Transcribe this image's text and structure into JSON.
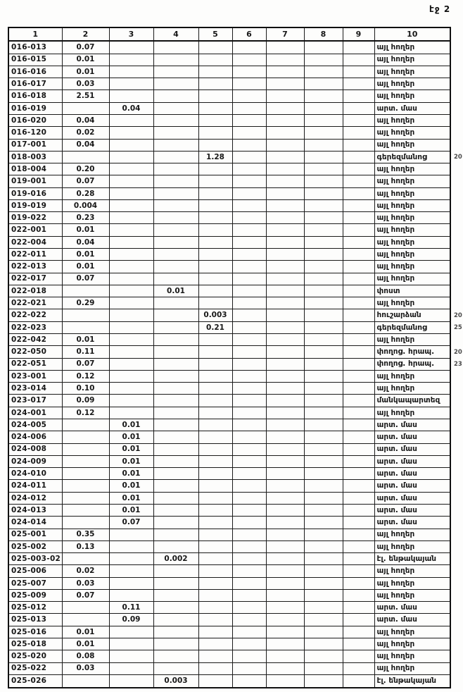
{
  "page_label": "էջ 2",
  "table": {
    "headers": [
      "1",
      "2",
      "3",
      "4",
      "5",
      "6",
      "7",
      "8",
      "9",
      "10"
    ],
    "rows": [
      [
        "016-013",
        "0.07",
        "",
        "",
        "",
        "",
        "",
        "",
        "",
        "այլ հողեր"
      ],
      [
        "016-015",
        "0.01",
        "",
        "",
        "",
        "",
        "",
        "",
        "",
        "այլ հողեր"
      ],
      [
        "016-016",
        "0.01",
        "",
        "",
        "",
        "",
        "",
        "",
        "",
        "այլ հողեր"
      ],
      [
        "016-017",
        "0.03",
        "",
        "",
        "",
        "",
        "",
        "",
        "",
        "այլ հողեր"
      ],
      [
        "016-018",
        "2.51",
        "",
        "",
        "",
        "",
        "",
        "",
        "",
        "այլ հողեր"
      ],
      [
        "016-019",
        "",
        "0.04",
        "",
        "",
        "",
        "",
        "",
        "",
        "արտ. մաս"
      ],
      [
        "016-020",
        "0.04",
        "",
        "",
        "",
        "",
        "",
        "",
        "",
        "այլ հողեր"
      ],
      [
        "016-120",
        "0.02",
        "",
        "",
        "",
        "",
        "",
        "",
        "",
        "այլ հողեր"
      ],
      [
        "017-001",
        "0.04",
        "",
        "",
        "",
        "",
        "",
        "",
        "",
        "այլ հողեր"
      ],
      [
        "018-003",
        "",
        "",
        "",
        "1.28",
        "",
        "",
        "",
        "",
        "գերեզմանոց"
      ],
      [
        "018-004",
        "0.20",
        "",
        "",
        "",
        "",
        "",
        "",
        "",
        "այլ հողեր"
      ],
      [
        "019-001",
        "0.07",
        "",
        "",
        "",
        "",
        "",
        "",
        "",
        "այլ հողեր"
      ],
      [
        "019-016",
        "0.28",
        "",
        "",
        "",
        "",
        "",
        "",
        "",
        "այլ հողեր"
      ],
      [
        "019-019",
        "0.004",
        "",
        "",
        "",
        "",
        "",
        "",
        "",
        "այլ հողեր"
      ],
      [
        "019-022",
        "0.23",
        "",
        "",
        "",
        "",
        "",
        "",
        "",
        "այլ հողեր"
      ],
      [
        "022-001",
        "0.01",
        "",
        "",
        "",
        "",
        "",
        "",
        "",
        "այլ հողեր"
      ],
      [
        "022-004",
        "0.04",
        "",
        "",
        "",
        "",
        "",
        "",
        "",
        "այլ հողեր"
      ],
      [
        "022-011",
        "0.01",
        "",
        "",
        "",
        "",
        "",
        "",
        "",
        "այլ հողեր"
      ],
      [
        "022-013",
        "0.01",
        "",
        "",
        "",
        "",
        "",
        "",
        "",
        "այլ հողեր"
      ],
      [
        "022-017",
        "0.07",
        "",
        "",
        "",
        "",
        "",
        "",
        "",
        "այլ հողեր"
      ],
      [
        "022-018",
        "",
        "",
        "0.01",
        "",
        "",
        "",
        "",
        "",
        "փոստ"
      ],
      [
        "022-021",
        "0.29",
        "",
        "",
        "",
        "",
        "",
        "",
        "",
        "այլ հողեր"
      ],
      [
        "022-022",
        "",
        "",
        "",
        "0.003",
        "",
        "",
        "",
        "",
        "հուշարձան"
      ],
      [
        "022-023",
        "",
        "",
        "",
        "0.21",
        "",
        "",
        "",
        "",
        "գերեզմանոց"
      ],
      [
        "022-042",
        "0.01",
        "",
        "",
        "",
        "",
        "",
        "",
        "",
        "այլ հողեր"
      ],
      [
        "022-050",
        "0.11",
        "",
        "",
        "",
        "",
        "",
        "",
        "",
        "փողոց. հրապ."
      ],
      [
        "022-051",
        "0.07",
        "",
        "",
        "",
        "",
        "",
        "",
        "",
        "փողոց. հրապ."
      ],
      [
        "023-001",
        "0.12",
        "",
        "",
        "",
        "",
        "",
        "",
        "",
        "այլ հողեր"
      ],
      [
        "023-014",
        "0.10",
        "",
        "",
        "",
        "",
        "",
        "",
        "",
        "այլ հողեր"
      ],
      [
        "023-017",
        "0.09",
        "",
        "",
        "",
        "",
        "",
        "",
        "",
        "մանկապարտեզ"
      ],
      [
        "024-001",
        "0.12",
        "",
        "",
        "",
        "",
        "",
        "",
        "",
        "այլ հողեր"
      ],
      [
        "024-005",
        "",
        "0.01",
        "",
        "",
        "",
        "",
        "",
        "",
        "արտ. մաս"
      ],
      [
        "024-006",
        "",
        "0.01",
        "",
        "",
        "",
        "",
        "",
        "",
        "արտ. մաս"
      ],
      [
        "024-008",
        "",
        "0.01",
        "",
        "",
        "",
        "",
        "",
        "",
        "արտ. մաս"
      ],
      [
        "024-009",
        "",
        "0.01",
        "",
        "",
        "",
        "",
        "",
        "",
        "արտ. մաս"
      ],
      [
        "024-010",
        "",
        "0.01",
        "",
        "",
        "",
        "",
        "",
        "",
        "արտ. մաս"
      ],
      [
        "024-011",
        "",
        "0.01",
        "",
        "",
        "",
        "",
        "",
        "",
        "արտ. մաս"
      ],
      [
        "024-012",
        "",
        "0.01",
        "",
        "",
        "",
        "",
        "",
        "",
        "արտ. մաս"
      ],
      [
        "024-013",
        "",
        "0.01",
        "",
        "",
        "",
        "",
        "",
        "",
        "արտ. մաս"
      ],
      [
        "024-014",
        "",
        "0.07",
        "",
        "",
        "",
        "",
        "",
        "",
        "արտ. մաս"
      ],
      [
        "025-001",
        "0.35",
        "",
        "",
        "",
        "",
        "",
        "",
        "",
        "այլ հողեր"
      ],
      [
        "025-002",
        "0.13",
        "",
        "",
        "",
        "",
        "",
        "",
        "",
        "այլ հողեր"
      ],
      [
        "025-003-02",
        "",
        "",
        "0.002",
        "",
        "",
        "",
        "",
        "",
        "էլ. ենթակայան"
      ],
      [
        "025-006",
        "0.02",
        "",
        "",
        "",
        "",
        "",
        "",
        "",
        "այլ հողեր"
      ],
      [
        "025-007",
        "0.03",
        "",
        "",
        "",
        "",
        "",
        "",
        "",
        "այլ հողեր"
      ],
      [
        "025-009",
        "0.07",
        "",
        "",
        "",
        "",
        "",
        "",
        "",
        "այլ հողեր"
      ],
      [
        "025-012",
        "",
        "0.11",
        "",
        "",
        "",
        "",
        "",
        "",
        "արտ. մաս"
      ],
      [
        "025-013",
        "",
        "0.09",
        "",
        "",
        "",
        "",
        "",
        "",
        "արտ. մաս"
      ],
      [
        "025-016",
        "0.01",
        "",
        "",
        "",
        "",
        "",
        "",
        "",
        "այլ հողեր"
      ],
      [
        "025-018",
        "0.01",
        "",
        "",
        "",
        "",
        "",
        "",
        "",
        "այլ հողեր"
      ],
      [
        "025-020",
        "0.08",
        "",
        "",
        "",
        "",
        "",
        "",
        "",
        "այլ հողեր"
      ],
      [
        "025-022",
        "0.03",
        "",
        "",
        "",
        "",
        "",
        "",
        "",
        "այլ հողեր"
      ],
      [
        "025-026",
        "",
        "",
        "0.003",
        "",
        "",
        "",
        "",
        "",
        "էլ. ենթակայան"
      ]
    ]
  },
  "margin_notes": [
    {
      "row_code": "018-003",
      "text": "20"
    },
    {
      "row_code": "022-022",
      "text": "20"
    },
    {
      "row_code": "022-023",
      "text": "25"
    },
    {
      "row_code": "022-050",
      "text": "20"
    },
    {
      "row_code": "022-051",
      "text": "23"
    }
  ]
}
